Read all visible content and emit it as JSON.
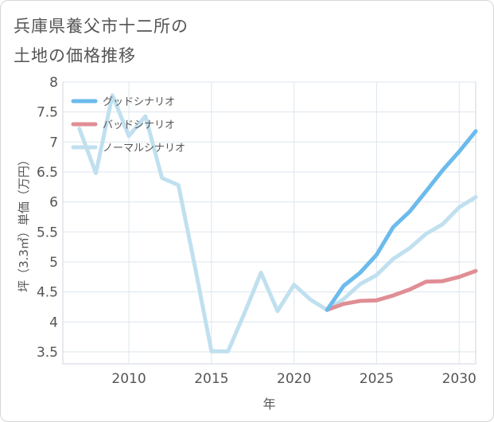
{
  "title": {
    "line1": "兵庫県養父市十二所の",
    "line2": "土地の価格推移"
  },
  "chart_data": {
    "type": "line",
    "xlabel": "年",
    "ylabel": "坪（3.3㎡）単価（万円）",
    "xlim": [
      2006,
      2031
    ],
    "ylim": [
      3.3,
      8
    ],
    "xticks": [
      2010,
      2015,
      2020,
      2025,
      2030
    ],
    "xtick_labels": [
      "2010",
      "2015",
      "2020",
      "2025",
      "2030"
    ],
    "yticks": [
      3.5,
      4,
      4.5,
      5,
      5.5,
      6,
      6.5,
      7,
      7.5,
      8
    ],
    "ytick_labels": [
      "3.5",
      "4",
      "4.5",
      "5",
      "5.5",
      "6",
      "6.5",
      "7",
      "7.5",
      "8"
    ],
    "grid": true,
    "legend_position": "top-left",
    "series": [
      {
        "name": "グッドシナリオ",
        "color": "#6bbbec",
        "x": [
          2022,
          2023,
          2024,
          2025,
          2026,
          2027,
          2028,
          2029,
          2030,
          2031
        ],
        "values": [
          4.2,
          4.6,
          4.82,
          5.12,
          5.58,
          5.84,
          6.18,
          6.53,
          6.84,
          7.18
        ]
      },
      {
        "name": "バッドシナリオ",
        "color": "#e08e95",
        "x": [
          2022,
          2023,
          2024,
          2025,
          2026,
          2027,
          2028,
          2029,
          2030,
          2031
        ],
        "values": [
          4.2,
          4.3,
          4.35,
          4.36,
          4.44,
          4.54,
          4.67,
          4.68,
          4.75,
          4.85
        ]
      },
      {
        "name": "ノーマルシナリオ",
        "color": "#c0e0ef",
        "x": [
          2007,
          2008,
          2009,
          2010,
          2011,
          2012,
          2013,
          2014,
          2015,
          2016,
          2017,
          2018,
          2019,
          2020,
          2021,
          2022,
          2023,
          2024,
          2025,
          2026,
          2027,
          2028,
          2029,
          2030,
          2031
        ],
        "values": [
          7.22,
          6.48,
          7.78,
          7.1,
          7.43,
          6.4,
          6.28,
          4.92,
          3.51,
          3.51,
          4.15,
          4.82,
          4.18,
          4.62,
          4.37,
          4.2,
          4.38,
          4.63,
          4.78,
          5.05,
          5.23,
          5.47,
          5.63,
          5.91,
          6.08
        ]
      }
    ]
  }
}
